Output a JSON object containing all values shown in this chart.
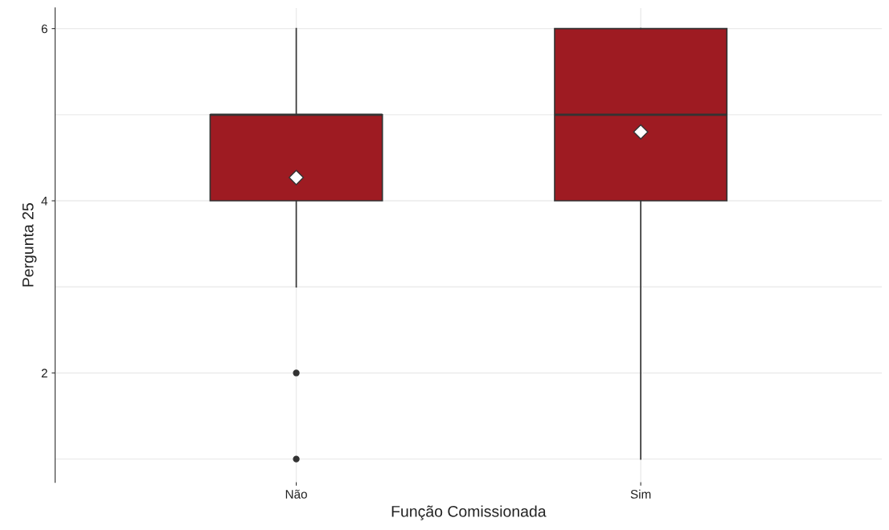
{
  "chart_data": {
    "type": "box",
    "xlabel": "Função Comissionada",
    "ylabel": "Pergunta 25",
    "categories": [
      "Não",
      "Sim"
    ],
    "series": [
      {
        "color": "#9e1b22",
        "boxes": [
          {
            "low": 3,
            "q1": 4,
            "median": 5,
            "q3": 5,
            "high": 6,
            "mean": 4.27,
            "outliers": [
              2,
              1
            ]
          },
          {
            "low": 1,
            "q1": 4,
            "median": 5,
            "q3": 6,
            "high": 6,
            "mean": 4.8
          }
        ]
      }
    ],
    "ylim": [
      0.73,
      6.24
    ],
    "yticks": [
      {
        "value": 1,
        "label": null
      },
      2,
      {
        "value": 3,
        "label": null
      },
      4,
      {
        "value": 5,
        "label": null
      },
      6
    ],
    "grid": true
  }
}
